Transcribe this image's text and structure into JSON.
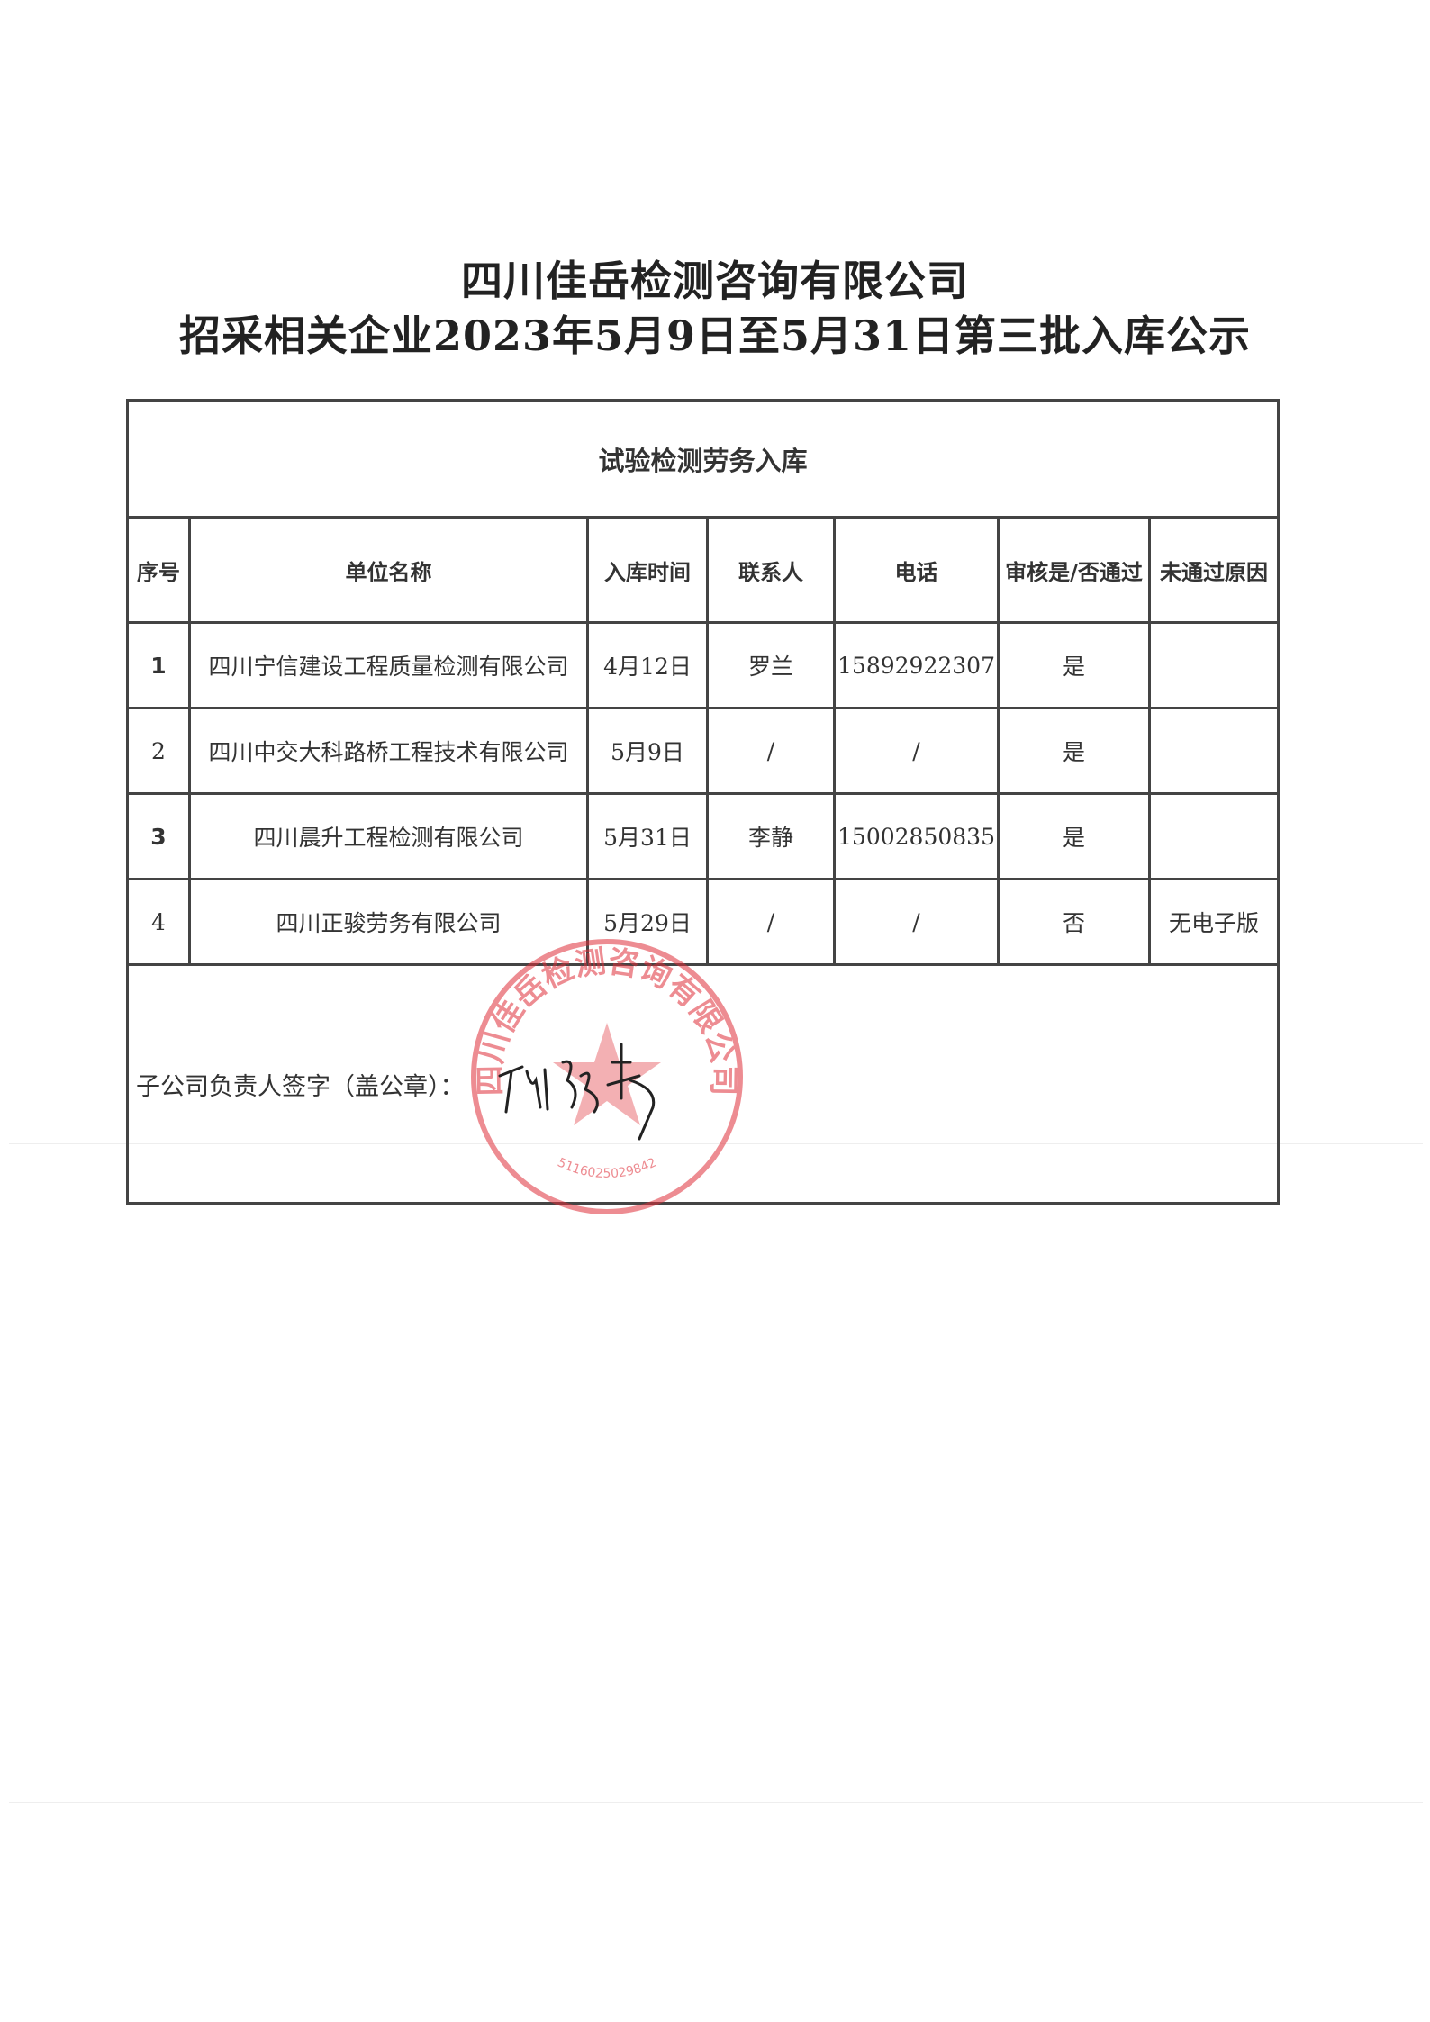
{
  "title_line1": "四川佳岳检测咨询有限公司",
  "title_line2": "招采相关企业2023年5月9日至5月31日第三批入库公示",
  "table": {
    "caption": "试验检测劳务入库",
    "headers": [
      "序号",
      "单位名称",
      "入库时间",
      "联系人",
      "电话",
      "审核是/否通过",
      "未通过原因"
    ],
    "rows": [
      [
        "1",
        "四川宁信建设工程质量检测有限公司",
        "4月12日",
        "罗兰",
        "15892922307",
        "是",
        ""
      ],
      [
        "2",
        "四川中交大科路桥工程技术有限公司",
        "5月9日",
        "/",
        "/",
        "是",
        ""
      ],
      [
        "3",
        "四川晨升工程检测有限公司",
        "5月31日",
        "李静",
        "15002850835",
        "是",
        ""
      ],
      [
        "4",
        "四川正骏劳务有限公司",
        "5月29日",
        "/",
        "/",
        "否",
        "无电子版"
      ]
    ],
    "signature_label": "子公司负责人签字（盖公章）："
  },
  "seal": {
    "text": "四川佳岳检测咨询有限公司",
    "number": "5116025029842",
    "color": "#e0303a"
  }
}
